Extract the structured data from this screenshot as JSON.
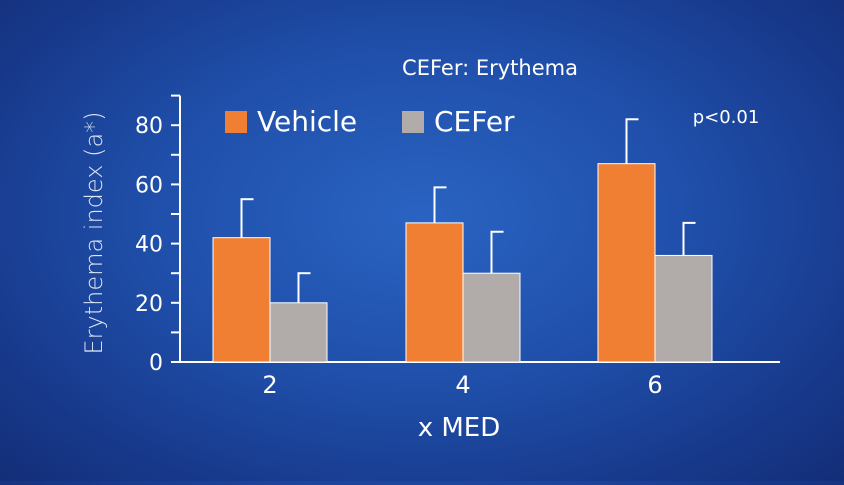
{
  "chart_data": {
    "type": "bar",
    "title": "CEFer: Erythema",
    "xlabel": "x MED",
    "ylabel": "Erythema index (a*)",
    "categories": [
      "2",
      "4",
      "6"
    ],
    "ylim": [
      0,
      90
    ],
    "yticks": [
      0,
      20,
      40,
      60,
      80
    ],
    "grid": false,
    "legend_position": "top-left",
    "annotation": "p<0.01",
    "series": [
      {
        "name": "Vehicle",
        "color": "#f07f33",
        "values": [
          42,
          47,
          67
        ],
        "errors": [
          13,
          12,
          15
        ]
      },
      {
        "name": "CEFer",
        "color": "#b1abaa",
        "values": [
          20,
          30,
          36
        ],
        "errors": [
          10,
          14,
          11
        ]
      }
    ]
  }
}
